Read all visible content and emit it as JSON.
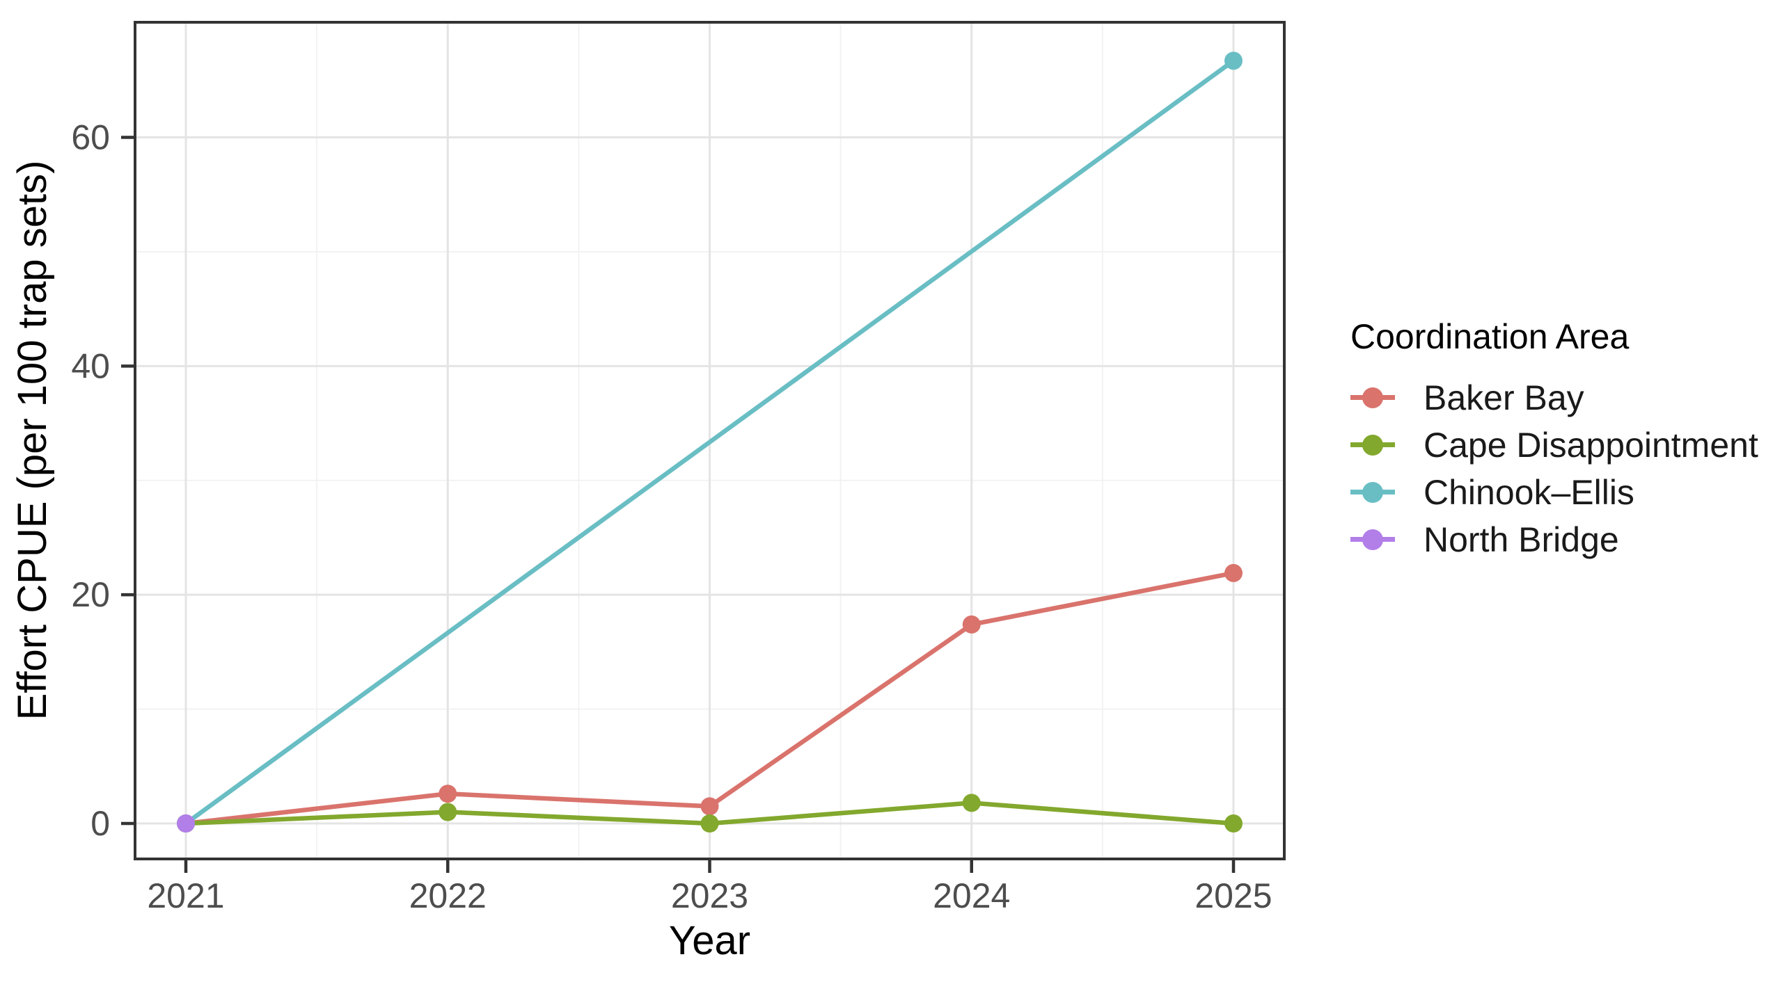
{
  "chart_data": {
    "type": "line",
    "title": "",
    "xlabel": "Year",
    "ylabel": "Effort CPUE (per 100 trap sets)",
    "x_ticks": [
      2021,
      2022,
      2023,
      2024,
      2025
    ],
    "y_ticks": [
      0,
      20,
      40,
      60
    ],
    "xlim": [
      2020.8,
      2025.2
    ],
    "ylim": [
      -3.3,
      70.1
    ],
    "grid": "major and minor gridlines on, white panel, dark panel border",
    "legend": {
      "title": "Coordination Area",
      "position": "right"
    },
    "series": [
      {
        "name": "Baker Bay",
        "color": "#D9736C",
        "x": [
          2021,
          2022,
          2023,
          2024,
          2025
        ],
        "y": [
          0,
          2.6,
          1.5,
          17.4,
          21.9
        ]
      },
      {
        "name": "Cape Disappointment",
        "color": "#82A82D",
        "x": [
          2021,
          2022,
          2023,
          2024,
          2025
        ],
        "y": [
          0,
          1.0,
          0,
          1.8,
          0
        ]
      },
      {
        "name": "Chinook–Ellis",
        "color": "#69BEC4",
        "x": [
          2021,
          2025
        ],
        "y": [
          0,
          66.7
        ]
      },
      {
        "name": "North Bridge",
        "color": "#B27EE8",
        "x": [
          2021
        ],
        "y": [
          0
        ]
      }
    ],
    "colors": {
      "grid_major": "#E4E4E4",
      "grid_minor": "#F1F1F1",
      "panel_border": "#333333",
      "tick_mark": "#333333",
      "tick_label": "#4D4D4D",
      "axis_title": "#000000"
    }
  }
}
